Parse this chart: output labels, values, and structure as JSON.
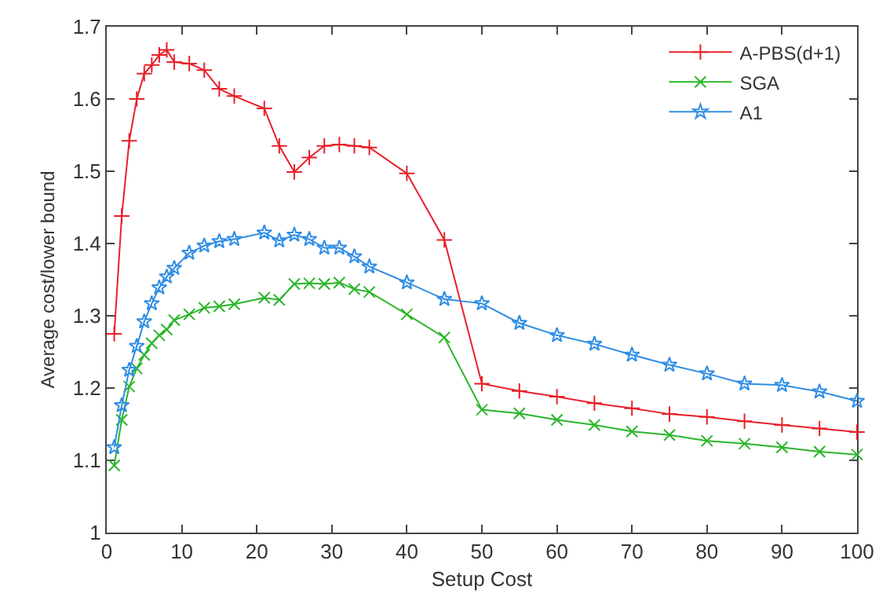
{
  "chart_data": {
    "type": "line",
    "xlabel": "Setup Cost",
    "ylabel": "Average cost/lower bound",
    "xlim": [
      0,
      100
    ],
    "xticks": [
      0,
      10,
      20,
      30,
      40,
      50,
      60,
      70,
      80,
      90,
      100
    ],
    "ylim": [
      1,
      1.7
    ],
    "yticks": [
      1,
      1.1,
      1.2,
      1.3,
      1.4,
      1.5,
      1.6,
      1.7
    ],
    "legend": "top right",
    "x": [
      1,
      2,
      3,
      4,
      5,
      6,
      7,
      8,
      9,
      11,
      13,
      15,
      17,
      21,
      23,
      25,
      27,
      29,
      31,
      33,
      35,
      40,
      45,
      50,
      55,
      60,
      65,
      70,
      75,
      80,
      85,
      90,
      95,
      100
    ],
    "series": [
      {
        "name": "A-PBS(d+1)",
        "color": "#e8202a",
        "marker": "cross",
        "values": [
          1.275,
          1.438,
          1.542,
          1.6,
          1.635,
          1.647,
          1.661,
          1.668,
          1.651,
          1.649,
          1.64,
          1.614,
          1.604,
          1.587,
          1.535,
          1.499,
          1.519,
          1.535,
          1.537,
          1.535,
          1.533,
          1.497,
          1.405,
          1.206,
          1.196,
          1.188,
          1.179,
          1.172,
          1.164,
          1.16,
          1.154,
          1.149,
          1.144,
          1.139
        ]
      },
      {
        "name": "SGA",
        "color": "#2ab52a",
        "marker": "x",
        "values": [
          1.093,
          1.156,
          1.202,
          1.227,
          1.246,
          1.262,
          1.273,
          1.281,
          1.294,
          1.302,
          1.311,
          1.313,
          1.316,
          1.325,
          1.322,
          1.344,
          1.345,
          1.344,
          1.346,
          1.337,
          1.333,
          1.302,
          1.27,
          1.17,
          1.165,
          1.156,
          1.149,
          1.14,
          1.135,
          1.127,
          1.123,
          1.118,
          1.112,
          1.108
        ]
      },
      {
        "name": "A1",
        "color": "#2f8de4",
        "marker": "star",
        "values": [
          1.118,
          1.176,
          1.225,
          1.258,
          1.292,
          1.317,
          1.339,
          1.354,
          1.366,
          1.387,
          1.397,
          1.403,
          1.406,
          1.415,
          1.404,
          1.412,
          1.406,
          1.394,
          1.394,
          1.382,
          1.368,
          1.346,
          1.323,
          1.317,
          1.29,
          1.273,
          1.261,
          1.246,
          1.232,
          1.22,
          1.206,
          1.204,
          1.195,
          1.182
        ]
      }
    ]
  }
}
